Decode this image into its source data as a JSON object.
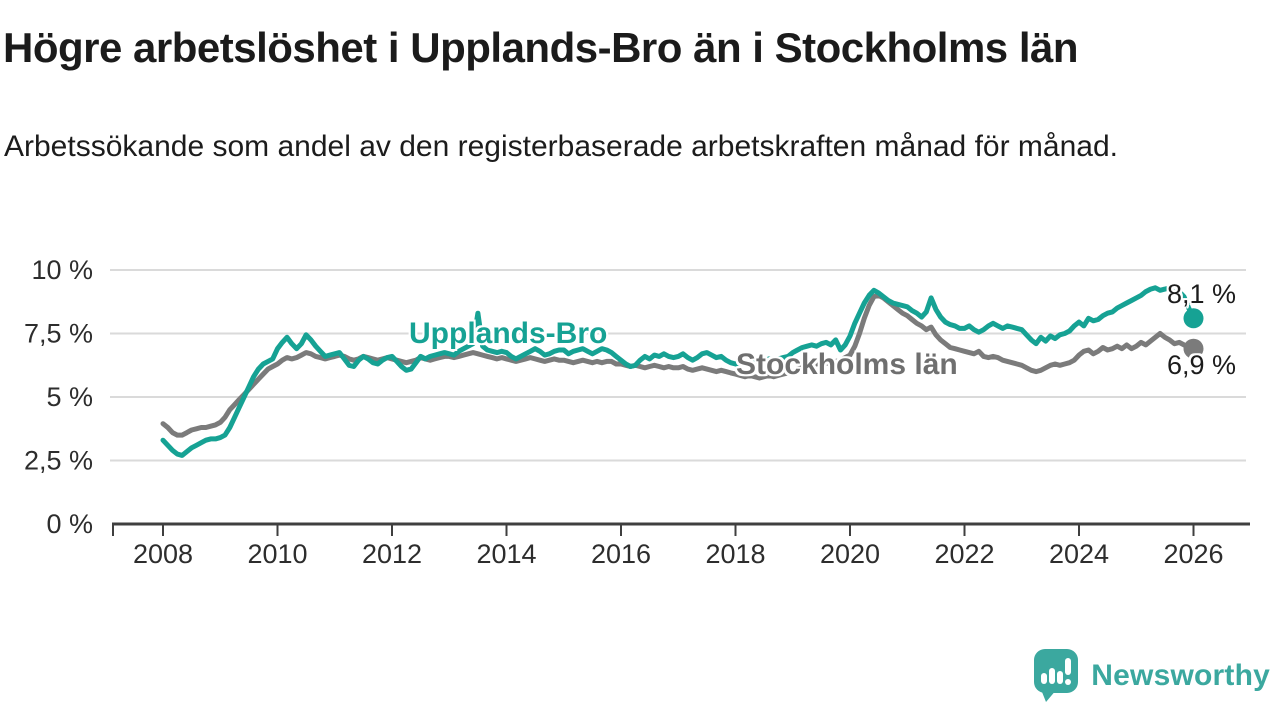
{
  "title": "Högre arbetslöshet i Upplands-Bro än i Stockholms län",
  "subtitle": "Arbetssökande som andel av den registerbaserade arbetskraften månad för månad.",
  "chart_data": {
    "type": "line",
    "unit": "%",
    "x_start": "2008-01",
    "x_end": "2026-01",
    "x_interval": "monthly",
    "x_tick_labels": [
      "2008",
      "2010",
      "2012",
      "2014",
      "2016",
      "2018",
      "2020",
      "2022",
      "2024",
      "2026"
    ],
    "y_ticks": [
      0,
      2.5,
      5,
      7.5,
      10
    ],
    "y_tick_labels": [
      "0 %",
      "2,5 %",
      "5 %",
      "7,5 %",
      "10 %"
    ],
    "ylim": [
      0,
      10.3
    ],
    "grid": true,
    "legend_position": "inline-labels",
    "colors": {
      "accent_teal": "#16a294",
      "gray": "#7b7b7b",
      "axis": "#3f3f3f",
      "gridline": "#dadada"
    },
    "series": [
      {
        "name": "Upplands-Bro",
        "key": "upplands-bro",
        "color": "#16a294",
        "end_label": "8,1 %",
        "end_value": 8.1,
        "values": [
          3.3,
          3.1,
          2.9,
          2.75,
          2.7,
          2.85,
          3.0,
          3.1,
          3.2,
          3.3,
          3.35,
          3.35,
          3.4,
          3.5,
          3.8,
          4.2,
          4.6,
          5.0,
          5.4,
          5.8,
          6.1,
          6.3,
          6.4,
          6.5,
          6.9,
          7.15,
          7.35,
          7.1,
          6.9,
          7.1,
          7.45,
          7.25,
          7.0,
          6.8,
          6.6,
          6.65,
          6.7,
          6.75,
          6.5,
          6.25,
          6.2,
          6.45,
          6.6,
          6.5,
          6.35,
          6.3,
          6.45,
          6.55,
          6.6,
          6.4,
          6.2,
          6.05,
          6.1,
          6.35,
          6.6,
          6.5,
          6.6,
          6.65,
          6.7,
          6.75,
          6.7,
          6.65,
          6.8,
          6.9,
          7.0,
          7.1,
          8.3,
          7.0,
          6.85,
          6.8,
          6.75,
          6.8,
          6.75,
          6.6,
          6.5,
          6.6,
          6.7,
          6.8,
          6.9,
          6.8,
          6.65,
          6.7,
          6.8,
          6.85,
          6.85,
          6.7,
          6.8,
          6.85,
          6.9,
          6.8,
          6.7,
          6.8,
          6.9,
          6.85,
          6.75,
          6.6,
          6.45,
          6.3,
          6.2,
          6.25,
          6.45,
          6.6,
          6.5,
          6.65,
          6.6,
          6.7,
          6.6,
          6.55,
          6.6,
          6.7,
          6.55,
          6.45,
          6.55,
          6.7,
          6.75,
          6.65,
          6.55,
          6.6,
          6.45,
          6.35,
          6.3,
          6.35,
          6.3,
          6.35,
          6.4,
          6.35,
          6.45,
          6.5,
          6.45,
          6.5,
          6.55,
          6.6,
          6.75,
          6.85,
          6.95,
          7.0,
          7.05,
          7.0,
          7.1,
          7.15,
          7.05,
          7.25,
          6.85,
          7.05,
          7.4,
          7.9,
          8.3,
          8.7,
          9.0,
          9.2,
          9.1,
          8.95,
          8.8,
          8.7,
          8.65,
          8.6,
          8.55,
          8.4,
          8.3,
          8.15,
          8.35,
          8.9,
          8.45,
          8.15,
          7.95,
          7.85,
          7.8,
          7.7,
          7.7,
          7.8,
          7.65,
          7.55,
          7.65,
          7.8,
          7.9,
          7.8,
          7.7,
          7.8,
          7.75,
          7.7,
          7.65,
          7.45,
          7.25,
          7.1,
          7.35,
          7.2,
          7.4,
          7.3,
          7.45,
          7.5,
          7.6,
          7.8,
          7.95,
          7.8,
          8.1,
          8.0,
          8.05,
          8.2,
          8.3,
          8.35,
          8.5,
          8.6,
          8.7,
          8.8,
          8.9,
          9.0,
          9.15,
          9.25,
          9.3,
          9.2,
          9.25,
          9.3,
          9.1,
          9.15,
          8.95,
          8.5,
          8.1
        ]
      },
      {
        "name": "Stockholms län",
        "key": "stockholms-lan",
        "color": "#7b7b7b",
        "end_label": "6,9 %",
        "end_value": 6.9,
        "values": [
          3.95,
          3.8,
          3.6,
          3.5,
          3.5,
          3.6,
          3.7,
          3.75,
          3.8,
          3.8,
          3.85,
          3.9,
          4.0,
          4.2,
          4.5,
          4.7,
          4.9,
          5.1,
          5.3,
          5.5,
          5.7,
          5.9,
          6.1,
          6.2,
          6.3,
          6.45,
          6.55,
          6.5,
          6.55,
          6.65,
          6.75,
          6.7,
          6.6,
          6.55,
          6.5,
          6.55,
          6.6,
          6.65,
          6.6,
          6.5,
          6.45,
          6.5,
          6.6,
          6.55,
          6.5,
          6.45,
          6.5,
          6.55,
          6.5,
          6.45,
          6.4,
          6.35,
          6.4,
          6.45,
          6.55,
          6.5,
          6.45,
          6.5,
          6.55,
          6.6,
          6.6,
          6.55,
          6.6,
          6.65,
          6.7,
          6.75,
          6.7,
          6.65,
          6.6,
          6.55,
          6.5,
          6.55,
          6.5,
          6.45,
          6.4,
          6.45,
          6.5,
          6.55,
          6.5,
          6.45,
          6.4,
          6.45,
          6.5,
          6.45,
          6.45,
          6.4,
          6.35,
          6.4,
          6.45,
          6.4,
          6.35,
          6.4,
          6.35,
          6.4,
          6.4,
          6.3,
          6.3,
          6.25,
          6.2,
          6.25,
          6.2,
          6.15,
          6.2,
          6.25,
          6.2,
          6.15,
          6.2,
          6.15,
          6.15,
          6.2,
          6.1,
          6.05,
          6.1,
          6.15,
          6.1,
          6.05,
          6.0,
          6.05,
          6.0,
          5.95,
          5.9,
          5.85,
          5.8,
          5.85,
          5.8,
          5.75,
          5.8,
          5.85,
          5.8,
          5.85,
          5.9,
          5.95,
          6.0,
          6.1,
          6.15,
          6.2,
          6.25,
          6.3,
          6.4,
          6.35,
          6.3,
          6.4,
          6.45,
          6.55,
          6.65,
          7.0,
          7.5,
          8.1,
          8.6,
          8.95,
          9.0,
          8.9,
          8.75,
          8.6,
          8.45,
          8.3,
          8.2,
          8.05,
          7.9,
          7.8,
          7.65,
          7.75,
          7.45,
          7.25,
          7.1,
          6.95,
          6.9,
          6.85,
          6.8,
          6.75,
          6.7,
          6.8,
          6.6,
          6.55,
          6.6,
          6.55,
          6.45,
          6.4,
          6.35,
          6.3,
          6.25,
          6.15,
          6.05,
          6.0,
          6.05,
          6.15,
          6.25,
          6.3,
          6.25,
          6.3,
          6.35,
          6.45,
          6.65,
          6.8,
          6.85,
          6.7,
          6.8,
          6.95,
          6.85,
          6.9,
          7.0,
          6.9,
          7.05,
          6.9,
          7.0,
          7.15,
          7.05,
          7.2,
          7.35,
          7.5,
          7.35,
          7.25,
          7.1,
          7.15,
          7.05,
          6.95,
          6.9
        ]
      }
    ]
  },
  "logo": {
    "text": "Newsworthy",
    "color": "#3ba89f",
    "icon": "speech-bubble-bar-chart-icon"
  }
}
